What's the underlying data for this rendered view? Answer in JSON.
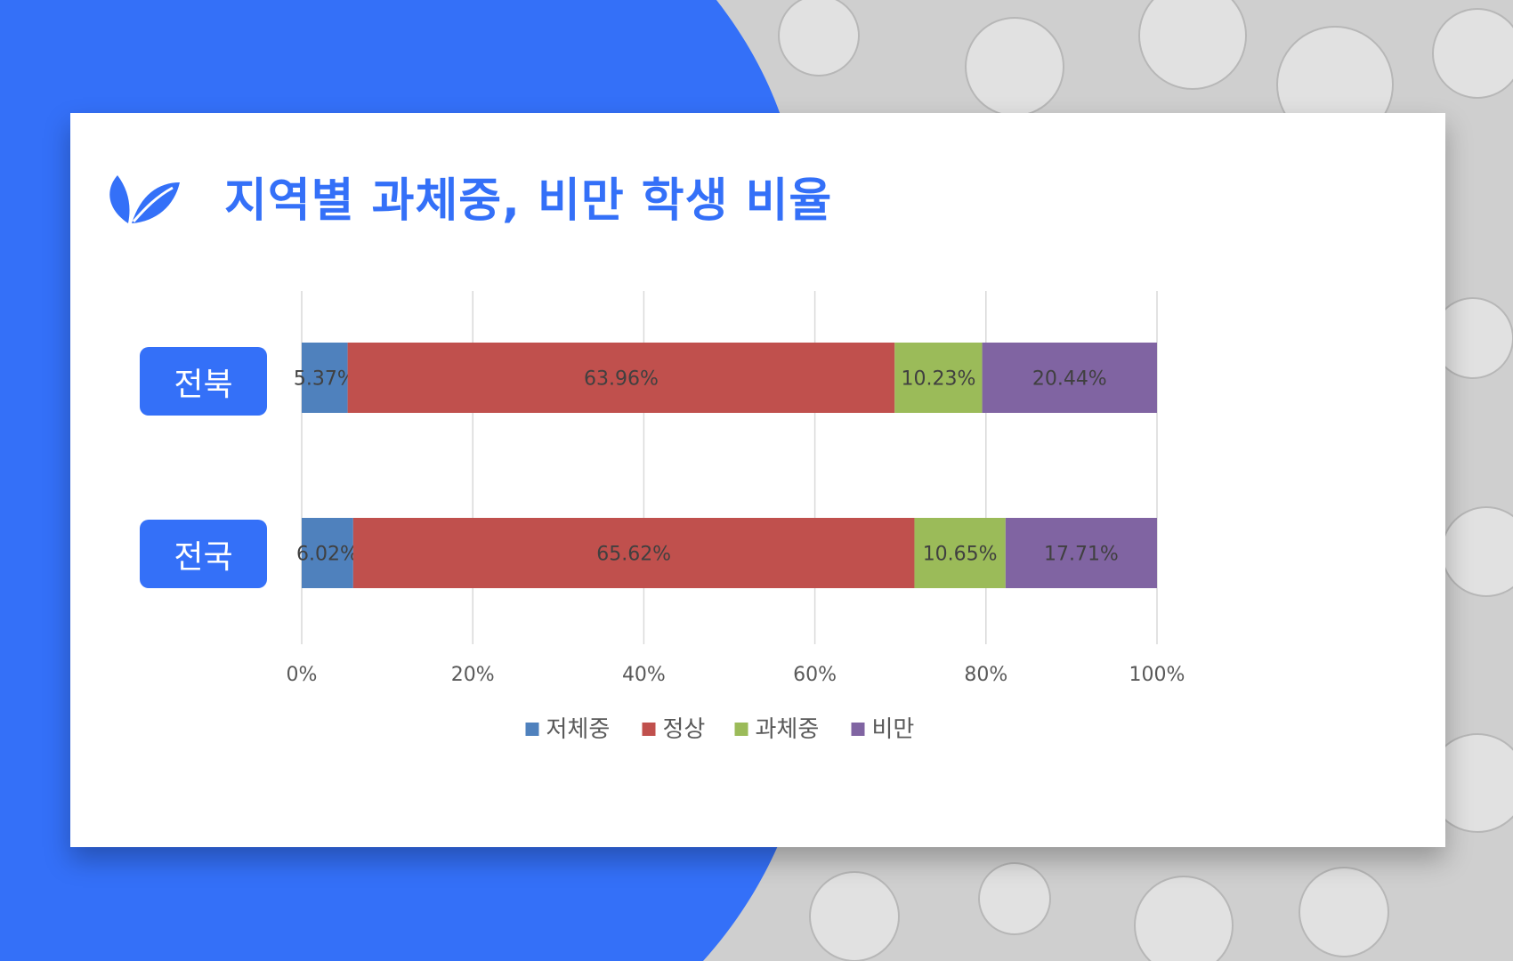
{
  "page": {
    "title": "지역별 과체중, 비만 학생 비율",
    "leaf_icon": "leaf-icon",
    "accent": "#3470f8"
  },
  "chart_data": {
    "type": "bar",
    "orientation": "horizontal",
    "stacked": "percent",
    "categories": [
      "전북",
      "전국"
    ],
    "series": [
      {
        "name": "저체중",
        "values": [
          5.37,
          6.02
        ],
        "labels": [
          "5.37%",
          "6.02%"
        ],
        "color": "#4f81bd"
      },
      {
        "name": "정상",
        "values": [
          63.96,
          65.62
        ],
        "labels": [
          "63.96%",
          "65.62%"
        ],
        "color": "#c0504d"
      },
      {
        "name": "과체중",
        "values": [
          10.23,
          10.65
        ],
        "labels": [
          "10.23%",
          "10.65%"
        ],
        "color": "#9bbb59"
      },
      {
        "name": "비만",
        "values": [
          20.44,
          17.71
        ],
        "labels": [
          "20.44%",
          "17.71%"
        ],
        "color": "#8064a2"
      }
    ],
    "xlim": [
      0,
      100
    ],
    "x_ticks": [
      "0%",
      "20%",
      "40%",
      "60%",
      "80%",
      "100%"
    ],
    "grid": true,
    "legend": "bottom"
  }
}
